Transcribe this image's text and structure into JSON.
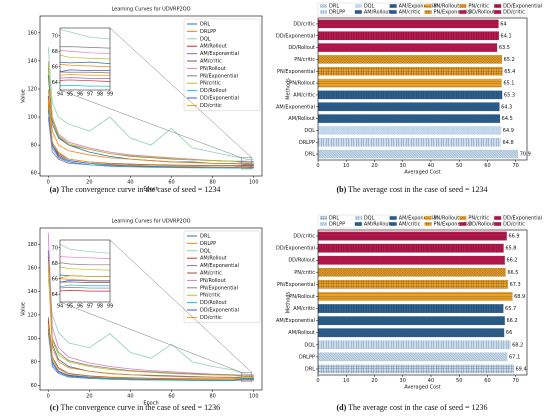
{
  "chart_data": [
    {
      "type": "line",
      "title": "Learning Curves for UDVRP2OO",
      "xlabel": "Epoch",
      "ylabel": "Value",
      "legend": "upper right",
      "caption_label": "(a)",
      "caption": "The convergence curve in the case of seed = 1234",
      "x": [
        0,
        2,
        5,
        10,
        20,
        30,
        40,
        50,
        60,
        70,
        80,
        90,
        95,
        97,
        99,
        100
      ],
      "xlim": [
        -4,
        104
      ],
      "xticks": [
        0,
        20,
        40,
        60,
        80,
        100
      ],
      "ylim": [
        58,
        172
      ],
      "yticks": [
        60,
        80,
        100,
        120,
        140,
        160
      ],
      "inset": {
        "xlim": [
          94,
          99
        ],
        "ylim": [
          63,
          71
        ],
        "xticks": [
          94,
          95,
          96,
          97,
          98,
          99
        ],
        "yticks": [
          64,
          66,
          68,
          70
        ]
      },
      "series": [
        {
          "name": "DRL",
          "color": "#1f77b4",
          "values": [
            130,
            95,
            85,
            80,
            75,
            72,
            70,
            69,
            68,
            68,
            67,
            67,
            66.5,
            66.6,
            66.4,
            66.3
          ]
        },
        {
          "name": "DRLPP",
          "color": "#ff7f0e",
          "values": [
            120,
            90,
            80,
            76,
            73,
            71,
            70,
            69,
            68,
            67.5,
            67,
            66.8,
            66.2,
            66.1,
            66.0,
            66.0
          ]
        },
        {
          "name": "DQL",
          "color": "#8fd1b0",
          "values": [
            150,
            110,
            100,
            95,
            90,
            100,
            85,
            80,
            92,
            78,
            75,
            72,
            70.5,
            69.8,
            69.6,
            69.5
          ]
        },
        {
          "name": "AM/Rollout",
          "color": "#d62728",
          "values": [
            110,
            80,
            72,
            68,
            66,
            65,
            64.8,
            64.5,
            64.4,
            64.2,
            64.1,
            64.0,
            64.3,
            64.2,
            64.1,
            64.1
          ]
        },
        {
          "name": "AM/Exponential",
          "color": "#9467bd",
          "values": [
            100,
            75,
            70,
            67,
            66,
            65.5,
            65,
            64.8,
            64.6,
            64.5,
            64.4,
            64.3,
            64.6,
            64.5,
            64.5,
            64.4
          ]
        },
        {
          "name": "AM/critic",
          "color": "#8c564b",
          "values": [
            115,
            82,
            74,
            70,
            68,
            67,
            66.5,
            66,
            65.8,
            65.6,
            65.5,
            65.4,
            65.3,
            65.3,
            65.2,
            65.2
          ]
        },
        {
          "name": "PN/Rollout",
          "color": "#e377c2",
          "values": [
            140,
            100,
            88,
            82,
            78,
            75,
            73,
            72,
            71,
            70,
            69,
            68.5,
            68.0,
            67.8,
            67.7,
            67.6
          ]
        },
        {
          "name": "PN/Exponential",
          "color": "#7f7f7f",
          "values": [
            135,
            98,
            86,
            80,
            77,
            74,
            72,
            71,
            70,
            69.5,
            69,
            68.5,
            68.6,
            68.5,
            68.4,
            68.4
          ]
        },
        {
          "name": "PN/critic",
          "color": "#bcbd22",
          "values": [
            138,
            99,
            87,
            81,
            77,
            74,
            72.5,
            71.5,
            70.5,
            69.5,
            69,
            68.7,
            67.2,
            67.1,
            67.0,
            67.0
          ]
        },
        {
          "name": "DD/Rollout",
          "color": "#17becf",
          "values": [
            105,
            78,
            71,
            68,
            66,
            65,
            64.5,
            64.2,
            64,
            63.8,
            63.7,
            63.6,
            63.6,
            63.5,
            63.5,
            63.5
          ]
        },
        {
          "name": "DD/Exponential",
          "color": "#3b5bdb",
          "values": [
            108,
            80,
            73,
            69,
            67,
            66,
            65.5,
            65,
            64.8,
            64.6,
            64.5,
            64.4,
            65.6,
            65.5,
            65.5,
            65.4
          ]
        },
        {
          "name": "DD/critic",
          "color": "#f59f00",
          "values": [
            112,
            82,
            75,
            70,
            68,
            66.5,
            65.8,
            65.3,
            65,
            64.8,
            64.6,
            64.5,
            65.0,
            64.9,
            64.9,
            64.8
          ]
        }
      ]
    },
    {
      "type": "bar",
      "orientation": "horizontal",
      "xlabel": "Averaged Cost",
      "ylabel": "Methods",
      "legend": "upper center",
      "caption_label": "(b)",
      "caption": "The average cost in the case of seed = 1234",
      "categories": [
        "DRL",
        "DRLPP",
        "DQL",
        "AM/Rollout",
        "AM/Exponential",
        "AM/critic",
        "PN/Rollout",
        "PN/Exponential",
        "PN/critic",
        "DD/Rollout",
        "DD/Exponential",
        "DD/critic"
      ],
      "values": [
        70.9,
        64.8,
        64.9,
        64.5,
        64.3,
        65.3,
        65.1,
        65.4,
        65.2,
        63.5,
        64.1,
        64.0
      ],
      "colors": [
        "#c6dbef",
        "#c6dbef",
        "#c6dbef",
        "#2c5f8d",
        "#2c5f8d",
        "#2c5f8d",
        "#e8a02a",
        "#e8a02a",
        "#e8a02a",
        "#b3164b",
        "#b3164b",
        "#b3164b"
      ],
      "hatches": [
        "\\",
        "|",
        ".",
        "/",
        "\\",
        "|",
        "-",
        "+",
        "x",
        ".",
        "|",
        "-"
      ],
      "xlim": [
        0,
        74
      ],
      "xticks": [
        0,
        10,
        20,
        30,
        40,
        50,
        60,
        70
      ]
    },
    {
      "type": "line",
      "title": "Learning Curves for UDVRP2OO",
      "xlabel": "Epoch",
      "ylabel": "Value",
      "legend": "upper right",
      "caption_label": "(c)",
      "caption": "The convergence curve in the case of seed = 1236",
      "x": [
        0,
        2,
        5,
        10,
        20,
        30,
        40,
        50,
        60,
        70,
        80,
        90,
        95,
        97,
        99,
        100
      ],
      "xlim": [
        -4,
        104
      ],
      "xticks": [
        0,
        20,
        40,
        60,
        80,
        100
      ],
      "ylim": [
        56,
        194
      ],
      "yticks": [
        60,
        80,
        100,
        120,
        140,
        160,
        180
      ],
      "inset": {
        "xlim": [
          94,
          99
        ],
        "ylim": [
          63,
          71
        ],
        "xticks": [
          94,
          95,
          96,
          97,
          98,
          99
        ],
        "yticks": [
          64,
          66,
          68,
          70
        ]
      },
      "series": [
        {
          "name": "DRL",
          "color": "#1f77b4",
          "values": [
            175,
            95,
            82,
            76,
            72,
            70,
            69,
            68.5,
            68,
            67.5,
            67,
            66.8,
            66.4,
            66.3,
            66.3,
            66.2
          ]
        },
        {
          "name": "DRLPP",
          "color": "#ff7f0e",
          "values": [
            160,
            92,
            80,
            75,
            72,
            70,
            69,
            68,
            67.5,
            67,
            66.8,
            66.5,
            65.9,
            65.8,
            65.8,
            65.7
          ]
        },
        {
          "name": "DQL",
          "color": "#8fd1b0",
          "values": [
            150,
            120,
            105,
            96,
            92,
            104,
            88,
            83,
            95,
            80,
            76,
            73,
            69.8,
            69.5,
            69.3,
            69.2
          ]
        },
        {
          "name": "AM/Rollout",
          "color": "#d62728",
          "values": [
            115,
            80,
            72,
            68,
            66,
            65.2,
            64.8,
            64.6,
            64.4,
            64.3,
            64.2,
            64.1,
            64.5,
            64.4,
            64.4,
            64.3
          ]
        },
        {
          "name": "AM/Exponential",
          "color": "#9467bd",
          "values": [
            105,
            76,
            70,
            67,
            65.8,
            65.3,
            65,
            64.8,
            64.7,
            64.6,
            64.5,
            64.4,
            64.9,
            64.8,
            64.8,
            64.7
          ]
        },
        {
          "name": "AM/critic",
          "color": "#8c564b",
          "values": [
            118,
            84,
            75,
            70,
            68,
            67,
            66.4,
            66,
            65.8,
            65.6,
            65.5,
            65.4,
            65.6,
            65.5,
            65.5,
            65.4
          ]
        },
        {
          "name": "PN/Rollout",
          "color": "#e377c2",
          "values": [
            190,
            110,
            92,
            84,
            79,
            76,
            74,
            72.5,
            71.5,
            70.5,
            69.5,
            69,
            68.8,
            68.7,
            68.6,
            68.6
          ]
        },
        {
          "name": "PN/Exponential",
          "color": "#7f7f7f",
          "values": [
            170,
            100,
            88,
            81,
            77,
            74.5,
            72.5,
            71.5,
            70.5,
            69.8,
            69.2,
            68.8,
            67.9,
            67.8,
            67.8,
            67.7
          ]
        },
        {
          "name": "PN/critic",
          "color": "#bcbd22",
          "values": [
            165,
            98,
            86,
            80,
            76,
            73.5,
            72,
            71,
            70,
            69.3,
            68.8,
            68.4,
            67.3,
            67.2,
            67.1,
            67.1
          ]
        },
        {
          "name": "DD/Rollout",
          "color": "#17becf",
          "values": [
            108,
            78,
            71,
            67.5,
            66,
            65.2,
            64.8,
            64.5,
            64.3,
            64.1,
            64,
            63.9,
            65.2,
            65.1,
            65.1,
            65.0
          ]
        },
        {
          "name": "DD/Exponential",
          "color": "#3b5bdb",
          "values": [
            110,
            80,
            72,
            68.5,
            66.8,
            66,
            65.5,
            65.2,
            65,
            64.8,
            64.7,
            64.6,
            65.8,
            65.7,
            65.7,
            65.6
          ]
        },
        {
          "name": "DD/critic",
          "color": "#f59f00",
          "values": [
            112,
            82,
            74,
            69.5,
            67.5,
            66.5,
            66,
            65.6,
            65.3,
            65.1,
            65,
            64.9,
            66.4,
            66.3,
            66.3,
            66.2
          ]
        }
      ]
    },
    {
      "type": "bar",
      "orientation": "horizontal",
      "xlabel": "Averaged Cost",
      "ylabel": "Methods",
      "legend": "upper center",
      "caption_label": "(d)",
      "caption": "The average cost in the case of seed = 1236",
      "categories": [
        "DRL",
        "DRLPP",
        "DQL",
        "AM/Rollout",
        "AM/Exponential",
        "AM/critic",
        "PN/Rollout",
        "PN/Exponential",
        "PN/critic",
        "DD/Rollout",
        "DD/Exponential",
        "DD/critic"
      ],
      "values": [
        69.4,
        67.1,
        68.2,
        66.0,
        66.2,
        65.7,
        68.9,
        67.3,
        66.5,
        66.2,
        65.8,
        66.9
      ],
      "colors": [
        "#c6dbef",
        "#c6dbef",
        "#c6dbef",
        "#2c5f8d",
        "#2c5f8d",
        "#2c5f8d",
        "#e8a02a",
        "#e8a02a",
        "#e8a02a",
        "#b3164b",
        "#b3164b",
        "#b3164b"
      ],
      "hatches": [
        "+",
        "\\",
        "|",
        "/",
        "\\",
        "|",
        "-",
        "+",
        "x",
        ".",
        "|",
        "-"
      ],
      "xlim": [
        0,
        74
      ],
      "xticks": [
        0,
        10,
        20,
        30,
        40,
        50,
        60,
        70
      ]
    }
  ]
}
